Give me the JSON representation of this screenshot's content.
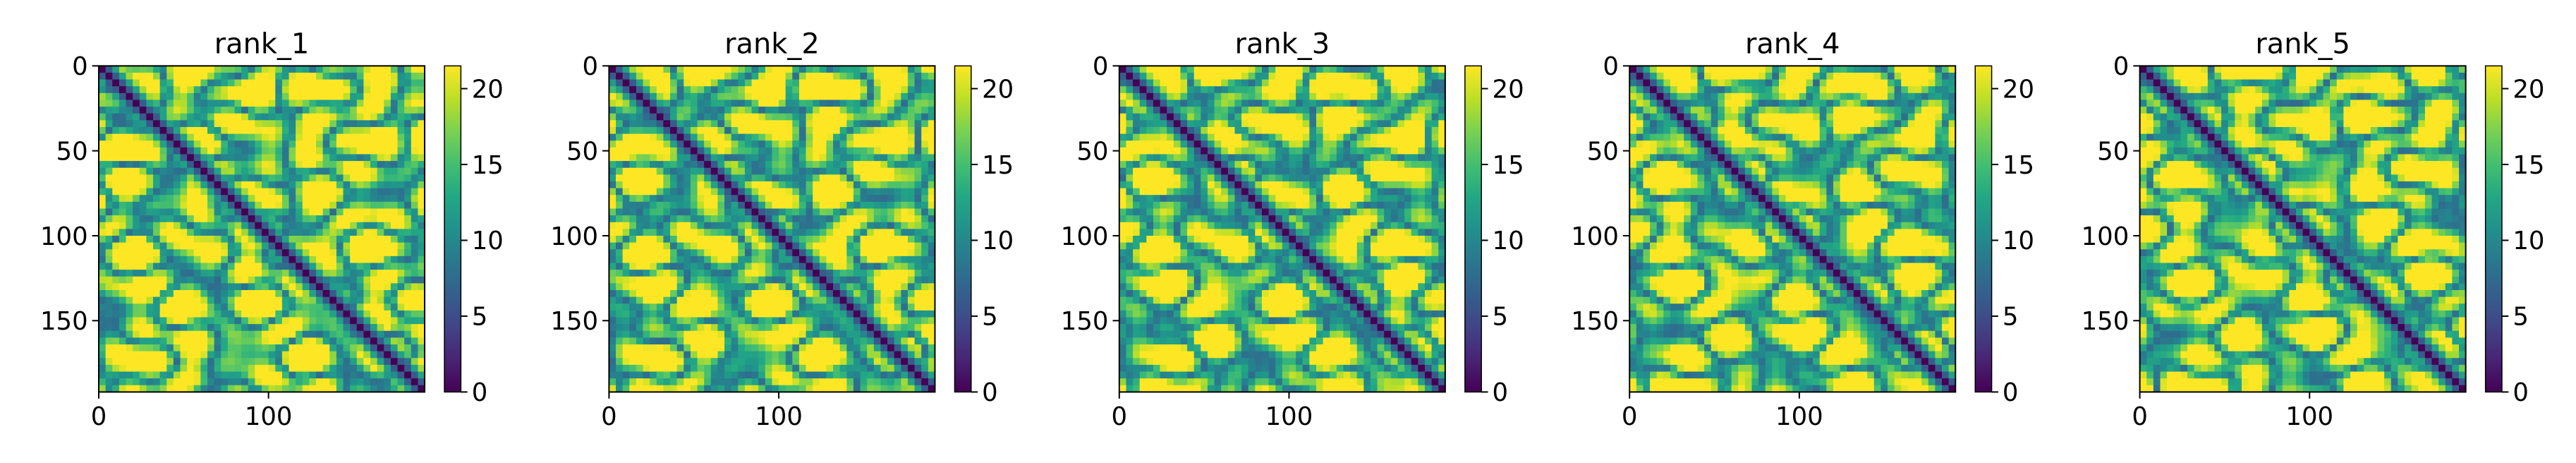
{
  "figure": {
    "description_type": "heatmap grid",
    "colormap": "viridis",
    "background": "#ffffff"
  },
  "chart_data": [
    {
      "type": "heatmap",
      "title": "rank_1",
      "xlabel": "",
      "ylabel": "",
      "matrix_size": 192,
      "xlim": [
        0,
        192
      ],
      "ylim": [
        192,
        0
      ],
      "x_ticks": [
        0,
        100
      ],
      "y_ticks": [
        0,
        50,
        100,
        150
      ],
      "colorbar": {
        "min": 0,
        "max": 21.5,
        "ticks": [
          0,
          5,
          10,
          15,
          20
        ]
      },
      "grid": false,
      "legend": "none"
    },
    {
      "type": "heatmap",
      "title": "rank_2",
      "xlabel": "",
      "ylabel": "",
      "matrix_size": 192,
      "xlim": [
        0,
        192
      ],
      "ylim": [
        192,
        0
      ],
      "x_ticks": [
        0,
        100
      ],
      "y_ticks": [
        0,
        50,
        100,
        150
      ],
      "colorbar": {
        "min": 0,
        "max": 21.5,
        "ticks": [
          0,
          5,
          10,
          15,
          20
        ]
      },
      "grid": false,
      "legend": "none"
    },
    {
      "type": "heatmap",
      "title": "rank_3",
      "xlabel": "",
      "ylabel": "",
      "matrix_size": 192,
      "xlim": [
        0,
        192
      ],
      "ylim": [
        192,
        0
      ],
      "x_ticks": [
        0,
        100
      ],
      "y_ticks": [
        0,
        50,
        100,
        150
      ],
      "colorbar": {
        "min": 0,
        "max": 21.5,
        "ticks": [
          0,
          5,
          10,
          15,
          20
        ]
      },
      "grid": false,
      "legend": "none"
    },
    {
      "type": "heatmap",
      "title": "rank_4",
      "xlabel": "",
      "ylabel": "",
      "matrix_size": 192,
      "xlim": [
        0,
        192
      ],
      "ylim": [
        192,
        0
      ],
      "x_ticks": [
        0,
        100
      ],
      "y_ticks": [
        0,
        50,
        100,
        150
      ],
      "colorbar": {
        "min": 0,
        "max": 21.5,
        "ticks": [
          0,
          5,
          10,
          15,
          20
        ]
      },
      "grid": false,
      "legend": "none"
    },
    {
      "type": "heatmap",
      "title": "rank_5",
      "xlabel": "",
      "ylabel": "",
      "matrix_size": 192,
      "xlim": [
        0,
        192
      ],
      "ylim": [
        192,
        0
      ],
      "x_ticks": [
        0,
        100
      ],
      "y_ticks": [
        0,
        50,
        100,
        150
      ],
      "colorbar": {
        "min": 0,
        "max": 21.5,
        "ticks": [
          0,
          5,
          10,
          15,
          20
        ]
      },
      "grid": false,
      "legend": "none"
    }
  ]
}
